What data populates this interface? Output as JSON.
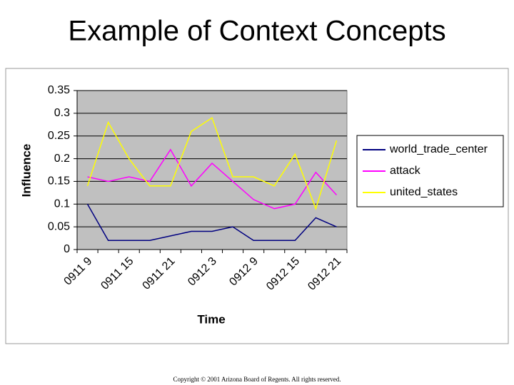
{
  "title": "Example of Context Concepts",
  "chart_data": {
    "type": "line",
    "x_label": "Time",
    "y_label": "Influence",
    "categories": [
      "0911 9",
      null,
      "0911 15",
      null,
      "0911 21",
      null,
      "0912 3",
      null,
      "0912 9",
      null,
      "0912 15",
      null,
      "0912 21"
    ],
    "series": [
      {
        "name": "world_trade_center",
        "color": "#000080",
        "values": [
          0.1,
          0.02,
          0.02,
          0.02,
          0.03,
          0.04,
          0.04,
          0.05,
          0.02,
          0.02,
          0.02,
          0.07,
          0.05
        ]
      },
      {
        "name": "attack",
        "color": "#ff00ff",
        "values": [
          0.16,
          0.15,
          0.16,
          0.15,
          0.22,
          0.14,
          0.19,
          0.15,
          0.11,
          0.09,
          0.1,
          0.17,
          0.12
        ]
      },
      {
        "name": "united_states",
        "color": "#ffff00",
        "values": [
          0.14,
          0.28,
          0.2,
          0.14,
          0.14,
          0.26,
          0.29,
          0.16,
          0.16,
          0.14,
          0.21,
          0.09,
          0.24
        ]
      }
    ],
    "ylim": [
      0,
      0.35
    ],
    "yticks": [
      0,
      0.05,
      0.1,
      0.15,
      0.2,
      0.25,
      0.3,
      0.35
    ],
    "grid": true,
    "legend": "right"
  },
  "footer": "Copyright © 2001 Arizona Board of Regents. All rights reserved."
}
